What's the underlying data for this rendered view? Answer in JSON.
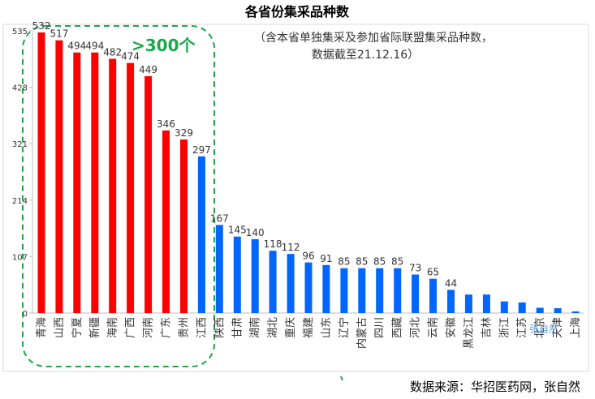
{
  "colors": {
    "high": "#ff0000",
    "low": "#0066ff",
    "callout": "#1aa84a",
    "grid": "#d9d9d9"
  },
  "note_line1": "（含本省单独集采及参加省际联盟集采品种数，",
  "note_line2": "数据截至21.12.16）",
  "callout_label": ">300个",
  "source": "数据来源：华招医药网，张自然",
  "watermark": "张自然",
  "chart_data": {
    "type": "bar",
    "title": "各省份集采品种数",
    "xlabel": "",
    "ylabel": "",
    "ylim": [
      0,
      535
    ],
    "yticks": [
      0,
      107,
      214,
      321,
      428,
      535
    ],
    "grid": false,
    "legend": "none",
    "categories": [
      "青海",
      "山西",
      "宁夏",
      "新疆",
      "海南",
      "广西",
      "河南",
      "广东",
      "贵州",
      "江西",
      "陕西",
      "甘肃",
      "湖南",
      "湖北",
      "重庆",
      "福建",
      "山东",
      "辽宁",
      "内蒙古",
      "四川",
      "西藏",
      "河北",
      "云南",
      "安徽",
      "黑龙江",
      "吉林",
      "浙江",
      "江苏",
      "北京",
      "天津",
      "上海"
    ],
    "values": [
      532,
      517,
      494,
      494,
      482,
      474,
      449,
      346,
      329,
      297,
      167,
      145,
      140,
      118,
      112,
      96,
      91,
      85,
      85,
      85,
      85,
      73,
      65,
      44,
      35,
      35,
      22,
      20,
      10,
      9,
      3
    ],
    "labeled_count": 24,
    "highlight_threshold": 300
  }
}
